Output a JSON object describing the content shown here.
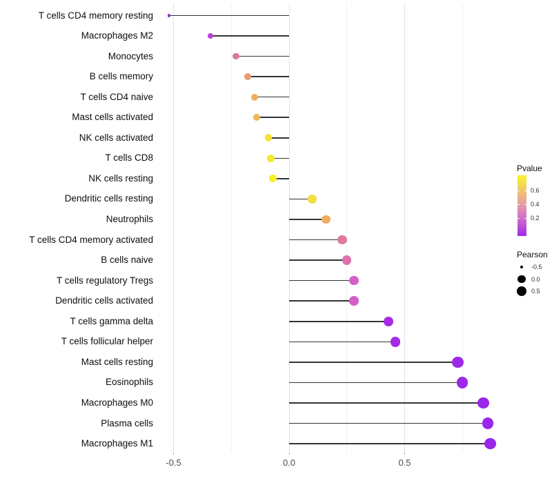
{
  "chart_data": {
    "type": "scatter",
    "subtype": "lollipop",
    "orientation": "horizontal",
    "title": "",
    "xlabel": "",
    "ylabel": "",
    "xlim": [
      -0.55,
      0.9
    ],
    "grid": "vertical-only",
    "x_ticks": [
      {
        "label": "-0.5",
        "value": -0.5
      },
      {
        "label": "0.0",
        "value": 0.0
      },
      {
        "label": "0.5",
        "value": 0.5
      }
    ],
    "x_minor_gridlines": [
      -0.25,
      0.25,
      0.75
    ],
    "categories": [
      "T cells CD4 memory resting",
      "Macrophages M2",
      "Monocytes",
      "B cells memory",
      "T cells CD4 naive",
      "Mast cells activated",
      "NK cells activated",
      "T cells CD8",
      "NK cells resting",
      "Dendritic cells resting",
      "Neutrophils",
      "T cells CD4 memory activated",
      "B cells naive",
      "T cells regulatory  Tregs",
      "Dendritic cells activated",
      "T cells gamma delta",
      "T cells follicular helper",
      "Mast cells resting",
      "Eosinophils",
      "Macrophages M0",
      "Plasma cells",
      "Macrophages M1"
    ],
    "series": [
      {
        "name": "Pearson",
        "values": [
          -0.52,
          -0.34,
          -0.23,
          -0.18,
          -0.15,
          -0.14,
          -0.09,
          -0.08,
          -0.07,
          0.1,
          0.16,
          0.23,
          0.25,
          0.28,
          0.28,
          0.43,
          0.46,
          0.73,
          0.75,
          0.84,
          0.86,
          0.87
        ]
      }
    ],
    "point_colors": [
      "#9135CE",
      "#B845D6",
      "#D9789A",
      "#E89B78",
      "#EFAD5B",
      "#F0B655",
      "#F3E43A",
      "#F5E92E",
      "#F7EF25",
      "#F3DE42",
      "#EFAC60",
      "#DD7A9E",
      "#DC72B0",
      "#D660C6",
      "#D65EC8",
      "#A62BE4",
      "#A42BE6",
      "#9E28E8",
      "#9D28E8",
      "#9A26EA",
      "#9926EA",
      "#9926EA"
    ],
    "color_encoding": "Pvalue",
    "size_encoding": "Pearson",
    "legend_position": "right"
  },
  "legend": {
    "pvalue": {
      "title": "Pvalue",
      "tick_labels": [
        "0.6",
        "0.4",
        "0.2"
      ],
      "gradient_stops": [
        "#FCF42B",
        "#EFC46E",
        "#E29BAB",
        "#CC66CC",
        "#A229E8"
      ]
    },
    "pearson": {
      "title": "Pearson",
      "items": [
        {
          "label": "-0.5",
          "value": -0.5
        },
        {
          "label": "0.0",
          "value": 0.0
        },
        {
          "label": "0.5",
          "value": 0.5
        }
      ]
    }
  },
  "colors": {
    "background": "#ffffff",
    "stem": "#333333",
    "grid_major": "#e2e2e2",
    "grid_minor": "#f0f0f0",
    "axis_text": "#4d4d4d",
    "label_text": "#0d0d0d"
  }
}
